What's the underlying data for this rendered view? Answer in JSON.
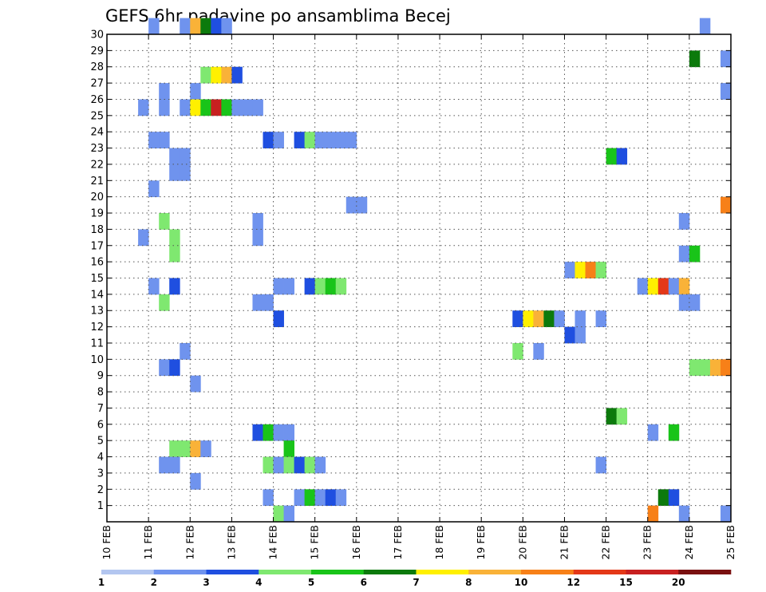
{
  "chart_data": {
    "type": "heatmap",
    "title": "GEFS 6hr padavine po ansamblima Becej",
    "x_tick_labels": [
      "10 FEB",
      "11 FEB",
      "12 FEB",
      "13 FEB",
      "14 FEB",
      "15 FEB",
      "16 FEB",
      "17 FEB",
      "18 FEB",
      "19 FEB",
      "20 FEB",
      "21 FEB",
      "22 FEB",
      "23 FEB",
      "24 FEB",
      "25 FEB"
    ],
    "y_tick_labels": [
      "1",
      "2",
      "3",
      "4",
      "5",
      "6",
      "7",
      "8",
      "9",
      "10",
      "11",
      "12",
      "13",
      "14",
      "15",
      "16",
      "17",
      "18",
      "19",
      "20",
      "21",
      "22",
      "23",
      "24",
      "25",
      "26",
      "27",
      "28",
      "29",
      "30"
    ],
    "xlim": [
      0,
      60
    ],
    "ylim": [
      0,
      30
    ],
    "grid": "dotted",
    "colorbar": {
      "colors": [
        "#b3c6f0",
        "#6f93ee",
        "#1f4fe0",
        "#7fe870",
        "#19c419",
        "#0c7a0c",
        "#fff000",
        "#f9b238",
        "#f78018",
        "#e43818",
        "#c82020",
        "#7a1010"
      ],
      "labels": [
        "1",
        "2",
        "3",
        "4",
        "5",
        "6",
        "7",
        "8",
        "10",
        "12",
        "15",
        "20"
      ]
    },
    "cells": [
      [
        4,
        30,
        1
      ],
      [
        7,
        30,
        1
      ],
      [
        8,
        30,
        7
      ],
      [
        9,
        30,
        5
      ],
      [
        10,
        30,
        2
      ],
      [
        11,
        30,
        1
      ],
      [
        57,
        30,
        1
      ],
      [
        56,
        28,
        5
      ],
      [
        59,
        28,
        1
      ],
      [
        9,
        27,
        3
      ],
      [
        10,
        27,
        6
      ],
      [
        11,
        27,
        7
      ],
      [
        12,
        27,
        2
      ],
      [
        5,
        26,
        1
      ],
      [
        8,
        26,
        1
      ],
      [
        59,
        26,
        1
      ],
      [
        3,
        25,
        1
      ],
      [
        5,
        25,
        1
      ],
      [
        7,
        25,
        1
      ],
      [
        8,
        25,
        6
      ],
      [
        9,
        25,
        4
      ],
      [
        10,
        25,
        10
      ],
      [
        11,
        25,
        4
      ],
      [
        12,
        25,
        1
      ],
      [
        13,
        25,
        1
      ],
      [
        14,
        25,
        1
      ],
      [
        4,
        23,
        1
      ],
      [
        5,
        23,
        1
      ],
      [
        15,
        23,
        2
      ],
      [
        16,
        23,
        1
      ],
      [
        18,
        23,
        2
      ],
      [
        19,
        23,
        3
      ],
      [
        20,
        23,
        1
      ],
      [
        21,
        23,
        1
      ],
      [
        22,
        23,
        1
      ],
      [
        23,
        23,
        1
      ],
      [
        6,
        22,
        1
      ],
      [
        7,
        22,
        1
      ],
      [
        48,
        22,
        4
      ],
      [
        49,
        22,
        2
      ],
      [
        6,
        21,
        1
      ],
      [
        7,
        21,
        1
      ],
      [
        4,
        20,
        1
      ],
      [
        23,
        19,
        1
      ],
      [
        24,
        19,
        1
      ],
      [
        59,
        19,
        8
      ],
      [
        14,
        18,
        1
      ],
      [
        5,
        18,
        3
      ],
      [
        55,
        18,
        1
      ],
      [
        14,
        17,
        1
      ],
      [
        3,
        17,
        1
      ],
      [
        6,
        17,
        3
      ],
      [
        6,
        16,
        3
      ],
      [
        55,
        16,
        1
      ],
      [
        56,
        16,
        4
      ],
      [
        44,
        15,
        1
      ],
      [
        45,
        15,
        6
      ],
      [
        46,
        15,
        8
      ],
      [
        47,
        15,
        3
      ],
      [
        4,
        14,
        1
      ],
      [
        6,
        14,
        2
      ],
      [
        16,
        14,
        1
      ],
      [
        17,
        14,
        1
      ],
      [
        19,
        14,
        2
      ],
      [
        20,
        14,
        3
      ],
      [
        21,
        14,
        4
      ],
      [
        22,
        14,
        3
      ],
      [
        51,
        14,
        1
      ],
      [
        52,
        14,
        6
      ],
      [
        53,
        14,
        9
      ],
      [
        54,
        14,
        1
      ],
      [
        55,
        14,
        7
      ],
      [
        5,
        13,
        3
      ],
      [
        14,
        13,
        1
      ],
      [
        15,
        13,
        1
      ],
      [
        55,
        13,
        1
      ],
      [
        56,
        13,
        1
      ],
      [
        16,
        12,
        2
      ],
      [
        39,
        12,
        2
      ],
      [
        40,
        12,
        6
      ],
      [
        41,
        12,
        7
      ],
      [
        42,
        12,
        5
      ],
      [
        43,
        12,
        1
      ],
      [
        45,
        12,
        1
      ],
      [
        47,
        12,
        1
      ],
      [
        44,
        11,
        2
      ],
      [
        45,
        11,
        1
      ],
      [
        7,
        10,
        1
      ],
      [
        39,
        10,
        3
      ],
      [
        41,
        10,
        1
      ],
      [
        5,
        9,
        1
      ],
      [
        6,
        9,
        2
      ],
      [
        56,
        9,
        3
      ],
      [
        57,
        9,
        3
      ],
      [
        58,
        9,
        7
      ],
      [
        59,
        9,
        8
      ],
      [
        8,
        8,
        1
      ],
      [
        48,
        6,
        5
      ],
      [
        49,
        6,
        3
      ],
      [
        14,
        5,
        2
      ],
      [
        15,
        5,
        4
      ],
      [
        16,
        5,
        1
      ],
      [
        17,
        5,
        1
      ],
      [
        52,
        5,
        1
      ],
      [
        54,
        5,
        4
      ],
      [
        6,
        4,
        3
      ],
      [
        7,
        4,
        3
      ],
      [
        8,
        4,
        7
      ],
      [
        9,
        4,
        1
      ],
      [
        17,
        4,
        4
      ],
      [
        5,
        3,
        1
      ],
      [
        6,
        3,
        1
      ],
      [
        15,
        3,
        3
      ],
      [
        16,
        3,
        1
      ],
      [
        17,
        3,
        3
      ],
      [
        18,
        3,
        2
      ],
      [
        19,
        3,
        3
      ],
      [
        20,
        3,
        1
      ],
      [
        47,
        3,
        1
      ],
      [
        8,
        2,
        1
      ],
      [
        15,
        1,
        1
      ],
      [
        18,
        1,
        1
      ],
      [
        19,
        1,
        4
      ],
      [
        20,
        1,
        1
      ],
      [
        21,
        1,
        2
      ],
      [
        22,
        1,
        1
      ],
      [
        53,
        1,
        5
      ],
      [
        54,
        1,
        2
      ],
      [
        16,
        0,
        3
      ],
      [
        17,
        0,
        1
      ],
      [
        52,
        0,
        8
      ],
      [
        55,
        0,
        1
      ],
      [
        59,
        0,
        1
      ]
    ]
  }
}
